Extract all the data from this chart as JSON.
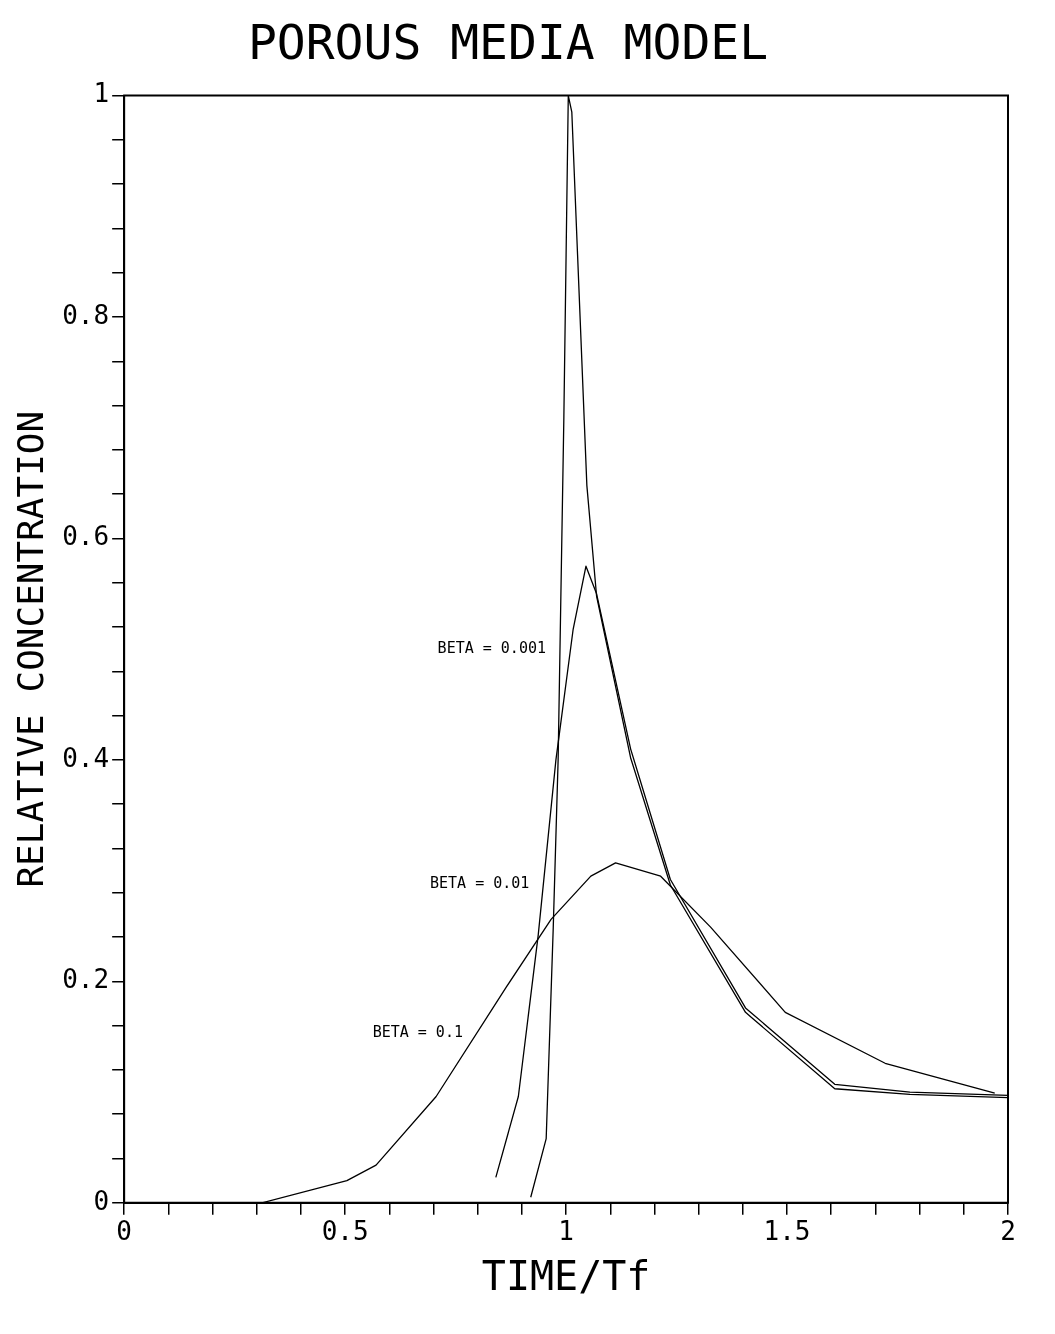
{
  "chart_data": {
    "type": "line",
    "title": "POROUS MEDIA MODEL",
    "xlabel": "TIME/Tf",
    "ylabel": "RELATIVE CONCENTRATION",
    "xlim": [
      0,
      2
    ],
    "ylim": [
      0,
      1
    ],
    "xticks": [
      0,
      {
        "value": 0.1,
        "label": null
      },
      {
        "value": 0.2,
        "label": null
      },
      {
        "value": 0.3,
        "label": null
      },
      {
        "value": 0.4,
        "label": null
      },
      0.5,
      {
        "value": 0.6,
        "label": null
      },
      {
        "value": 0.7,
        "label": null
      },
      {
        "value": 0.8,
        "label": null
      },
      {
        "value": 0.9,
        "label": null
      },
      1,
      {
        "value": 1.1,
        "label": null
      },
      {
        "value": 1.2,
        "label": null
      },
      {
        "value": 1.3,
        "label": null
      },
      {
        "value": 1.4,
        "label": null
      },
      1.5,
      {
        "value": 1.6,
        "label": null
      },
      {
        "value": 1.7,
        "label": null
      },
      {
        "value": 1.8,
        "label": null
      },
      {
        "value": 1.9,
        "label": null
      },
      2
    ],
    "yticks": [
      0,
      {
        "value": 0.04,
        "label": null
      },
      {
        "value": 0.08,
        "label": null
      },
      {
        "value": 0.12,
        "label": null
      },
      {
        "value": 0.16,
        "label": null
      },
      0.2,
      {
        "value": 0.24,
        "label": null
      },
      {
        "value": 0.28,
        "label": null
      },
      {
        "value": 0.32,
        "label": null
      },
      {
        "value": 0.36,
        "label": null
      },
      0.4,
      {
        "value": 0.44,
        "label": null
      },
      {
        "value": 0.48,
        "label": null
      },
      {
        "value": 0.52,
        "label": null
      },
      {
        "value": 0.56,
        "label": null
      },
      0.6,
      {
        "value": 0.64,
        "label": null
      },
      {
        "value": 0.68,
        "label": null
      },
      {
        "value": 0.72,
        "label": null
      },
      {
        "value": 0.76,
        "label": null
      },
      0.8,
      {
        "value": 0.84,
        "label": null
      },
      {
        "value": 0.88,
        "label": null
      },
      {
        "value": 0.92,
        "label": null
      },
      {
        "value": 0.96,
        "label": null
      },
      1
    ],
    "grid": false,
    "legend": false,
    "marker": "none",
    "line_style": "solid",
    "series": [
      {
        "name": "BETA = 0.001",
        "color": "#000000",
        "x": [
          0.92,
          0.955,
          0.971,
          0.982,
          0.995,
          1.005,
          1.013,
          1.047,
          1.069,
          1.146,
          1.236,
          1.406,
          1.608,
          1.778,
          2.0
        ],
        "values": [
          0.005,
          0.058,
          0.249,
          0.4,
          0.71,
          1.0,
          0.985,
          0.648,
          0.548,
          0.402,
          0.287,
          0.172,
          0.103,
          0.098,
          0.095
        ]
      },
      {
        "name": "BETA = 0.01",
        "color": "#000000",
        "x": [
          0.841,
          0.892,
          0.937,
          0.977,
          1.016,
          1.045,
          1.069,
          1.146,
          1.236,
          1.406,
          1.608,
          1.778,
          2.0
        ],
        "values": [
          0.023,
          0.096,
          0.242,
          0.4,
          0.518,
          0.575,
          0.55,
          0.41,
          0.292,
          0.176,
          0.107,
          0.1,
          0.097
        ]
      },
      {
        "name": "BETA = 0.1",
        "color": "#000000",
        "x": [
          0.312,
          0.504,
          0.57,
          0.706,
          0.865,
          0.966,
          1.056,
          1.112,
          1.214,
          1.327,
          1.496,
          1.722,
          1.97
        ],
        "values": [
          0.0,
          0.02,
          0.034,
          0.096,
          0.195,
          0.256,
          0.295,
          0.307,
          0.295,
          0.249,
          0.172,
          0.126,
          0.099
        ]
      }
    ]
  }
}
